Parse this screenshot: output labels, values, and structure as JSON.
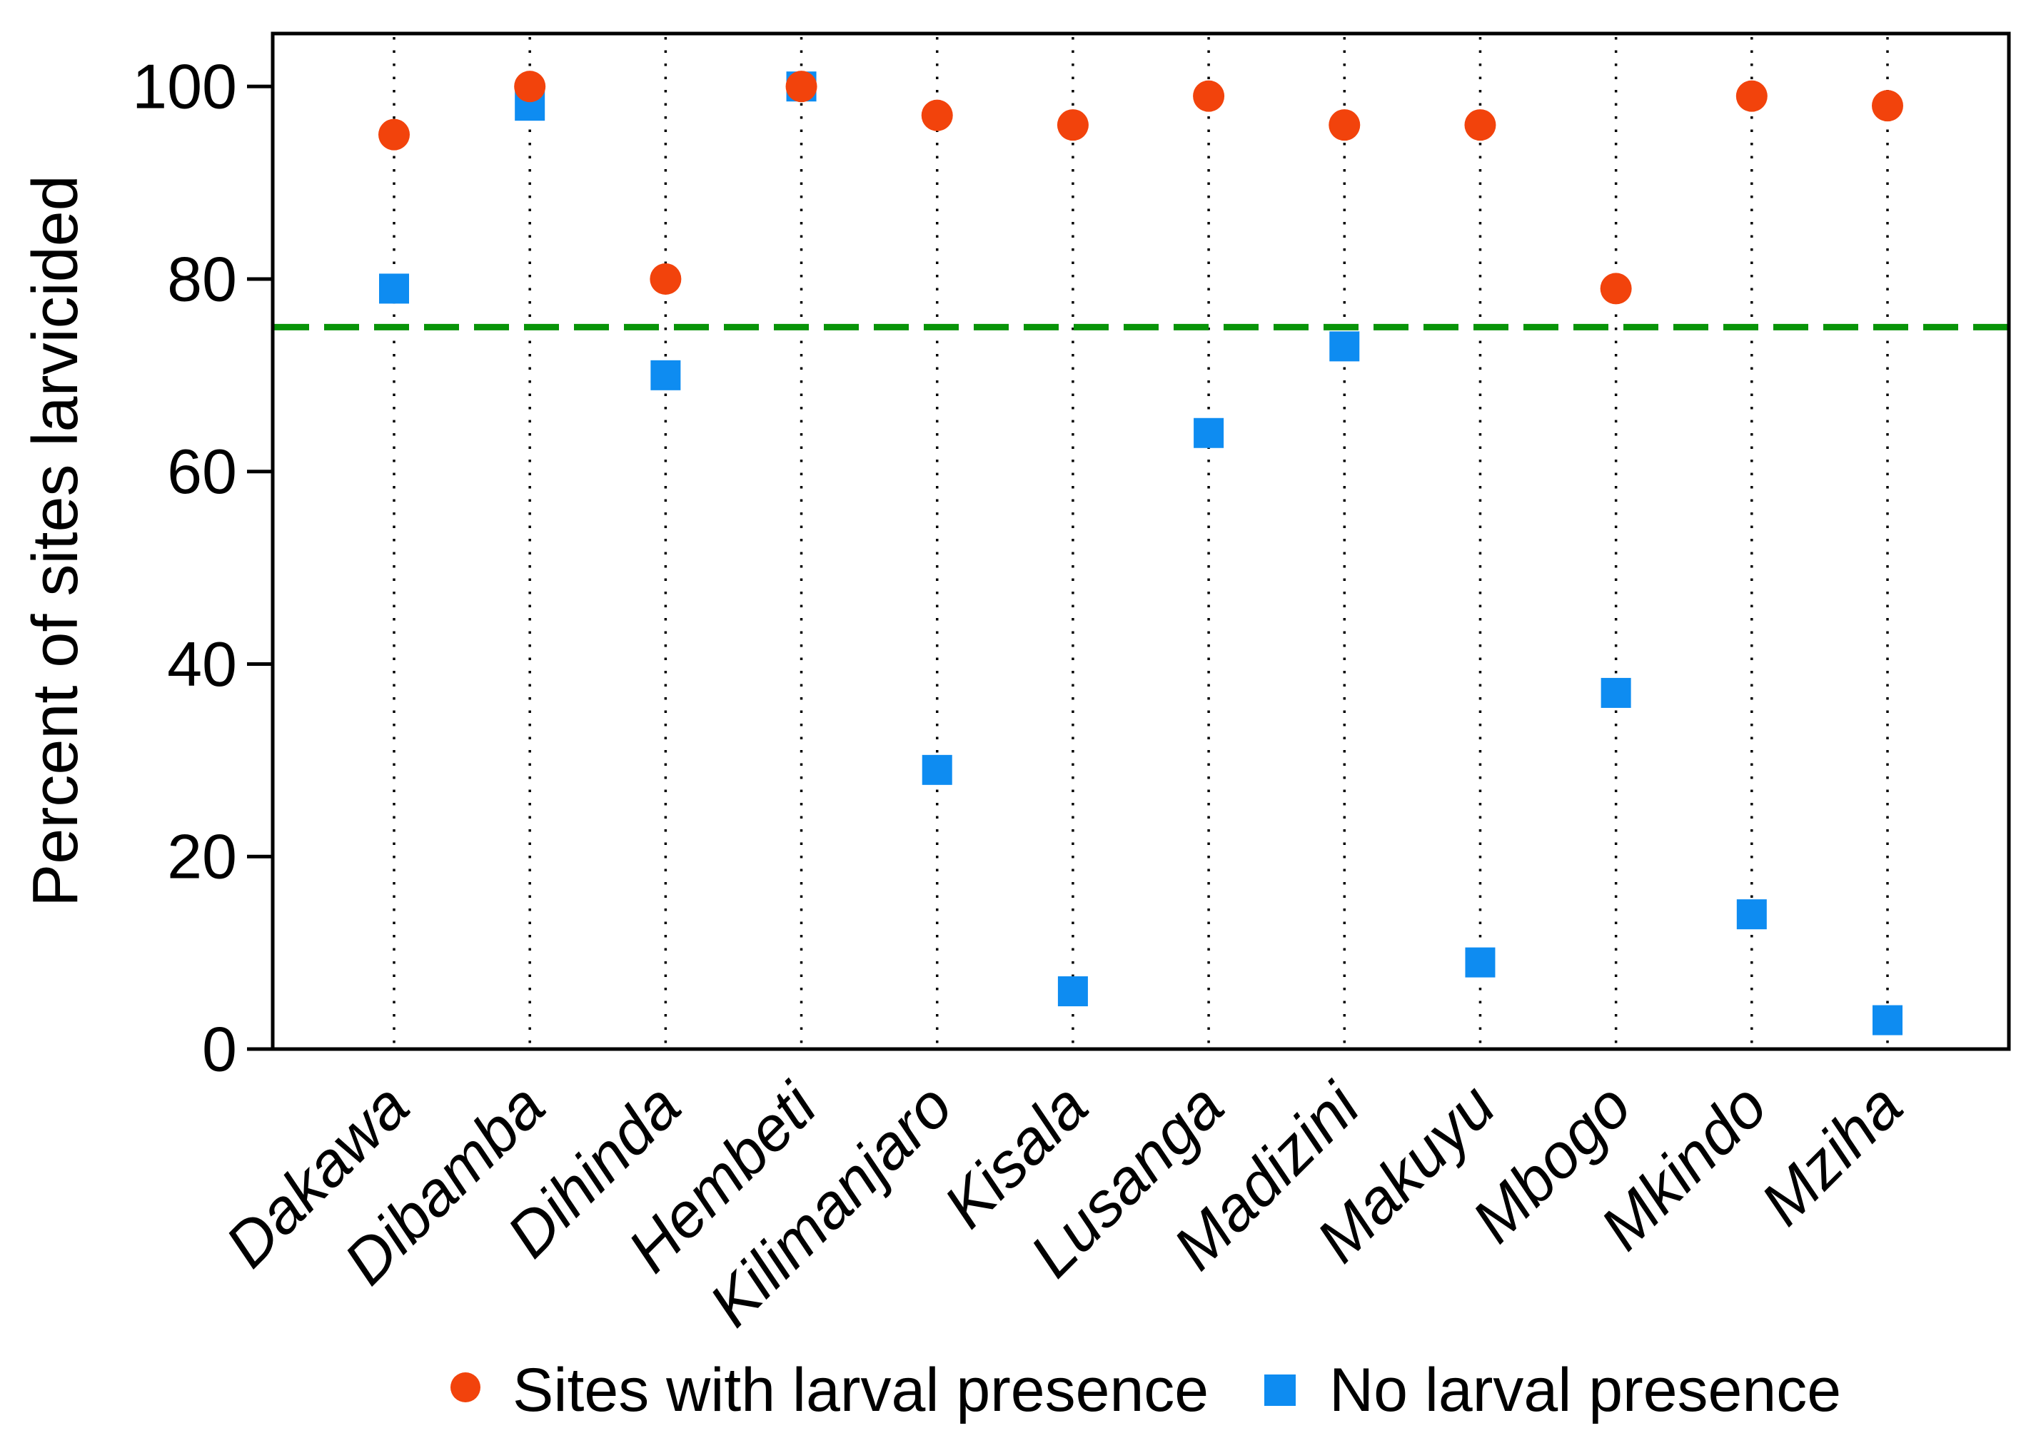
{
  "chart_data": {
    "type": "scatter",
    "title": "",
    "xlabel": "",
    "ylabel": "Percent of sites larvicided",
    "categories": [
      "Dakawa",
      "Dibamba",
      "Dihinda",
      "Hembeti",
      "Kilimanjaro",
      "Kisala",
      "Lusanga",
      "Madizini",
      "Makuyu",
      "Mbogo",
      "Mkindo",
      "Mziha"
    ],
    "series": [
      {
        "name": "Sites with larval presence",
        "marker": "circle",
        "color": "#F2430C",
        "values": [
          95,
          100,
          80,
          100,
          97,
          96,
          99,
          96,
          96,
          79,
          99,
          98
        ]
      },
      {
        "name": "No larval presence",
        "marker": "square",
        "color": "#0E8CF1",
        "values": [
          79,
          98,
          70,
          100,
          29,
          6,
          64,
          73,
          9,
          37,
          14,
          3
        ]
      }
    ],
    "reference_line": {
      "value": 75,
      "color": "#089408",
      "style": "dashed"
    },
    "y_ticks": [
      0,
      20,
      40,
      60,
      80,
      100
    ],
    "ylim": [
      0,
      105.5
    ],
    "grid": "vertical-dotted",
    "gridline_color": "#000000",
    "axis_color": "#000000",
    "legend_position": "bottom-center"
  }
}
